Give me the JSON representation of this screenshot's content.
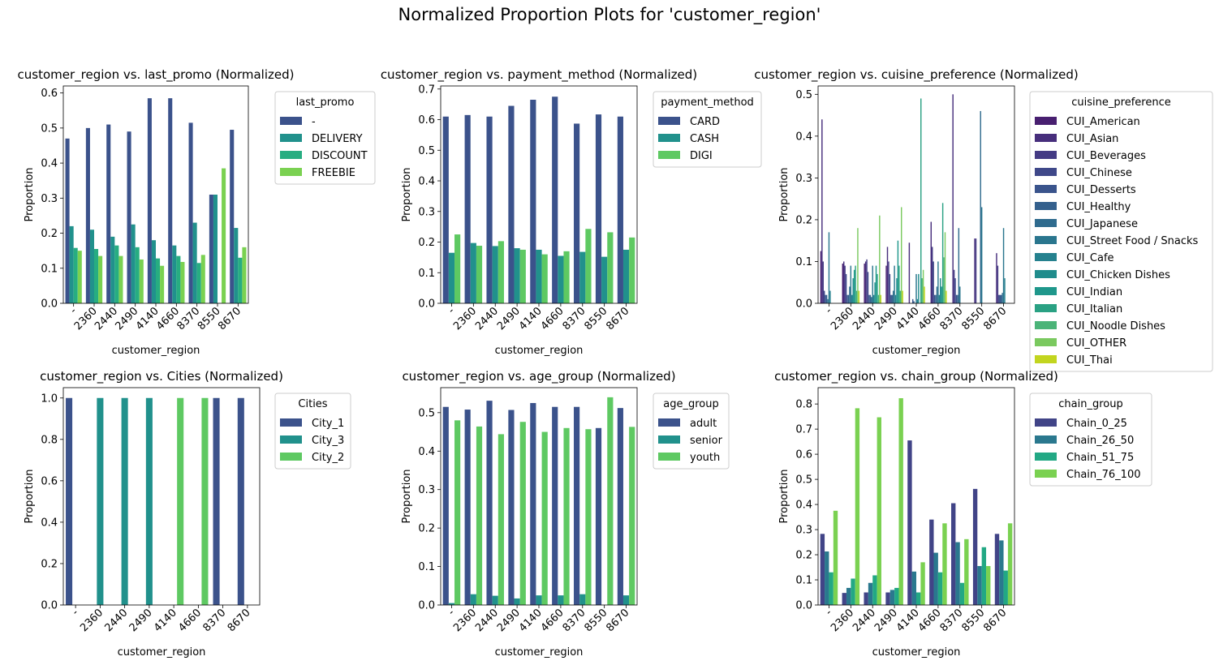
{
  "figure": {
    "title": "Normalized Proportion Plots for 'customer_region'"
  },
  "palettes": {
    "p2": [
      "#414487",
      "#7ad151"
    ],
    "p3": [
      "#3b528b",
      "#21918c",
      "#5ec962"
    ],
    "p4": [
      "#3b528b",
      "#21918c",
      "#27ad81",
      "#7ad151"
    ],
    "p4b": [
      "#414487",
      "#2a788e",
      "#22a884",
      "#7ad151"
    ],
    "p15": [
      "#481f70",
      "#472e7c",
      "#443b84",
      "#3f4889",
      "#3a548c",
      "#34608d",
      "#2f6b8e",
      "#2a768e",
      "#25818e",
      "#208c8c",
      "#1f978b",
      "#2aa183",
      "#4bb478",
      "#7ac95f",
      "#c2d51f"
    ]
  },
  "chart_data": [
    {
      "type": "bar",
      "title": "customer_region vs. last_promo (Normalized)",
      "xlabel": "customer_region",
      "ylabel": "Proportion",
      "ylim": [
        0,
        0.62
      ],
      "yticks": [
        0.0,
        0.1,
        0.2,
        0.3,
        0.4,
        0.5,
        0.6
      ],
      "ytick_decimals": 1,
      "legend": {
        "title": "last_promo",
        "placement": "outside upper right"
      },
      "palette": "p4",
      "categories": [
        "-",
        "2360",
        "2440",
        "2490",
        "4140",
        "4660",
        "8370",
        "8550",
        "8670"
      ],
      "series": [
        {
          "name": "-",
          "values": [
            0.47,
            0.5,
            0.51,
            0.49,
            0.585,
            0.585,
            0.515,
            0.31,
            0.495
          ]
        },
        {
          "name": "DELIVERY",
          "values": [
            0.22,
            0.21,
            0.19,
            0.225,
            0.18,
            0.165,
            0.23,
            0.31,
            0.215
          ]
        },
        {
          "name": "DISCOUNT",
          "values": [
            0.158,
            0.155,
            0.165,
            0.16,
            0.128,
            0.135,
            0.115,
            0.0,
            0.13
          ]
        },
        {
          "name": "FREEBIE",
          "values": [
            0.15,
            0.135,
            0.135,
            0.125,
            0.107,
            0.118,
            0.138,
            0.385,
            0.16
          ]
        }
      ]
    },
    {
      "type": "bar",
      "title": "customer_region vs. payment_method (Normalized)",
      "xlabel": "customer_region",
      "ylabel": "Proportion",
      "ylim": [
        0,
        0.71
      ],
      "yticks": [
        0.0,
        0.1,
        0.2,
        0.3,
        0.4,
        0.5,
        0.6,
        0.7
      ],
      "ytick_decimals": 1,
      "legend": {
        "title": "payment_method",
        "placement": "outside upper right"
      },
      "palette": "p3",
      "categories": [
        "-",
        "2360",
        "2440",
        "2490",
        "4140",
        "4660",
        "8370",
        "8550",
        "8670"
      ],
      "series": [
        {
          "name": "CARD",
          "values": [
            0.61,
            0.615,
            0.61,
            0.645,
            0.665,
            0.675,
            0.587,
            0.617,
            0.61
          ]
        },
        {
          "name": "CASH",
          "values": [
            0.165,
            0.197,
            0.187,
            0.18,
            0.175,
            0.155,
            0.168,
            0.152,
            0.175
          ]
        },
        {
          "name": "DIGI",
          "values": [
            0.225,
            0.188,
            0.203,
            0.175,
            0.16,
            0.17,
            0.243,
            0.232,
            0.215
          ]
        }
      ]
    },
    {
      "type": "bar",
      "title": "customer_region vs. cuisine_preference (Normalized)",
      "xlabel": "customer_region",
      "ylabel": "Proportion",
      "ylim": [
        0,
        0.52
      ],
      "yticks": [
        0.0,
        0.1,
        0.2,
        0.3,
        0.4,
        0.5
      ],
      "ytick_decimals": 1,
      "legend": {
        "title": "cuisine_preference",
        "placement": "outside upper right"
      },
      "palette": "p15",
      "categories": [
        "-",
        "2360",
        "2440",
        "2490",
        "4140",
        "4660",
        "8370",
        "8550",
        "8670"
      ],
      "series": [
        {
          "name": "CUI_American",
          "values": [
            0.125,
            0.095,
            0.095,
            0.09,
            0.0,
            0.0,
            0.0,
            0.0,
            0.0
          ]
        },
        {
          "name": "CUI_Asian",
          "values": [
            0.44,
            0.1,
            0.1,
            0.135,
            0.145,
            0.195,
            0.5,
            0.155,
            0.12
          ]
        },
        {
          "name": "CUI_Beverages",
          "values": [
            0.1,
            0.09,
            0.105,
            0.1,
            0.0,
            0.135,
            0.08,
            0.155,
            0.09
          ]
        },
        {
          "name": "CUI_Chinese",
          "values": [
            0.03,
            0.07,
            0.075,
            0.07,
            0.0,
            0.1,
            0.06,
            0.0,
            0.02
          ]
        },
        {
          "name": "CUI_Desserts",
          "values": [
            0.02,
            0.02,
            0.02,
            0.02,
            0.01,
            0.02,
            0.02,
            0.0,
            0.02
          ]
        },
        {
          "name": "CUI_Healthy",
          "values": [
            0.02,
            0.02,
            0.02,
            0.02,
            0.005,
            0.02,
            0.02,
            0.0,
            0.02
          ]
        },
        {
          "name": "CUI_Japanese",
          "values": [
            0.01,
            0.04,
            0.015,
            0.03,
            0.0,
            0.04,
            0.18,
            0.46,
            0.025
          ]
        },
        {
          "name": "CUI_Street Food / Snacks",
          "values": [
            0.17,
            0.09,
            0.09,
            0.09,
            0.07,
            0.1,
            0.04,
            0.23,
            0.18
          ]
        },
        {
          "name": "CUI_Cafe",
          "values": [
            0.03,
            0.02,
            0.02,
            0.02,
            0.01,
            0.02,
            0.0,
            0.0,
            0.06
          ]
        },
        {
          "name": "CUI_Chicken Dishes",
          "values": [
            0.0,
            0.06,
            0.05,
            0.06,
            0.07,
            0.06,
            0.0,
            0.0,
            0.0
          ]
        },
        {
          "name": "CUI_Indian",
          "values": [
            0.0,
            0.08,
            0.09,
            0.15,
            0.0,
            0.04,
            0.0,
            0.0,
            0.0
          ]
        },
        {
          "name": "CUI_Italian",
          "values": [
            0.0,
            0.09,
            0.07,
            0.09,
            0.49,
            0.24,
            0.0,
            0.0,
            0.0
          ]
        },
        {
          "name": "CUI_Noodle Dishes",
          "values": [
            0.0,
            0.03,
            0.02,
            0.03,
            0.06,
            0.11,
            0.0,
            0.0,
            0.0
          ]
        },
        {
          "name": "CUI_OTHER",
          "values": [
            0.0,
            0.18,
            0.21,
            0.23,
            0.08,
            0.17,
            0.0,
            0.0,
            0.0
          ]
        },
        {
          "name": "CUI_Thai",
          "values": [
            0.0,
            0.03,
            0.02,
            0.03,
            0.04,
            0.03,
            0.0,
            0.0,
            0.0
          ]
        }
      ]
    },
    {
      "type": "bar",
      "title": "customer_region vs. Cities (Normalized)",
      "xlabel": "customer_region",
      "ylabel": "Proportion",
      "ylim": [
        0,
        1.05
      ],
      "yticks": [
        0.0,
        0.2,
        0.4,
        0.6,
        0.8,
        1.0
      ],
      "ytick_decimals": 1,
      "legend": {
        "title": "Cities",
        "placement": "outside upper right"
      },
      "palette": "p3",
      "categories": [
        "-",
        "2360",
        "2440",
        "2490",
        "4140",
        "4660",
        "8370",
        "8670"
      ],
      "series": [
        {
          "name": "City_1",
          "values": [
            1.0,
            0,
            0,
            0,
            0,
            0,
            1.0,
            1.0
          ]
        },
        {
          "name": "City_3",
          "values": [
            0,
            1.0,
            1.0,
            1.0,
            0,
            0,
            0,
            0
          ]
        },
        {
          "name": "City_2",
          "values": [
            0,
            0,
            0,
            0,
            1.0,
            1.0,
            0,
            0
          ]
        }
      ]
    },
    {
      "type": "bar",
      "title": "customer_region vs. age_group (Normalized)",
      "xlabel": "customer_region",
      "ylabel": "Proportion",
      "ylim": [
        0,
        0.565
      ],
      "yticks": [
        0.0,
        0.1,
        0.2,
        0.3,
        0.4,
        0.5
      ],
      "ytick_decimals": 1,
      "legend": {
        "title": "age_group",
        "placement": "outside upper right"
      },
      "palette": "p3",
      "categories": [
        "-",
        "2360",
        "2440",
        "2490",
        "4140",
        "4660",
        "8370",
        "8550",
        "8670"
      ],
      "series": [
        {
          "name": "adult",
          "values": [
            0.515,
            0.508,
            0.531,
            0.507,
            0.525,
            0.515,
            0.515,
            0.46,
            0.512
          ]
        },
        {
          "name": "senior",
          "values": [
            0.005,
            0.028,
            0.024,
            0.017,
            0.025,
            0.025,
            0.028,
            0.0,
            0.025
          ]
        },
        {
          "name": "youth",
          "values": [
            0.48,
            0.464,
            0.444,
            0.476,
            0.45,
            0.46,
            0.457,
            0.54,
            0.463
          ]
        }
      ]
    },
    {
      "type": "bar",
      "title": "customer_region vs. chain_group (Normalized)",
      "xlabel": "customer_region",
      "ylabel": "Proportion",
      "ylim": [
        0,
        0.865
      ],
      "yticks": [
        0.0,
        0.1,
        0.2,
        0.3,
        0.4,
        0.5,
        0.6,
        0.7,
        0.8
      ],
      "ytick_decimals": 1,
      "legend": {
        "title": "chain_group",
        "placement": "outside upper right"
      },
      "palette": "p4b",
      "categories": [
        "-",
        "2360",
        "2440",
        "2490",
        "4140",
        "4660",
        "8370",
        "8550",
        "8670"
      ],
      "series": [
        {
          "name": "Chain_0_25",
          "values": [
            0.283,
            0.048,
            0.05,
            0.05,
            0.655,
            0.34,
            0.405,
            0.462,
            0.283
          ]
        },
        {
          "name": "Chain_26_50",
          "values": [
            0.213,
            0.068,
            0.088,
            0.06,
            0.133,
            0.208,
            0.25,
            0.155,
            0.257
          ]
        },
        {
          "name": "Chain_51_75",
          "values": [
            0.13,
            0.105,
            0.118,
            0.068,
            0.05,
            0.13,
            0.088,
            0.23,
            0.137
          ]
        },
        {
          "name": "Chain_76_100",
          "values": [
            0.375,
            0.783,
            0.747,
            0.823,
            0.17,
            0.325,
            0.262,
            0.155,
            0.325
          ]
        }
      ]
    }
  ]
}
